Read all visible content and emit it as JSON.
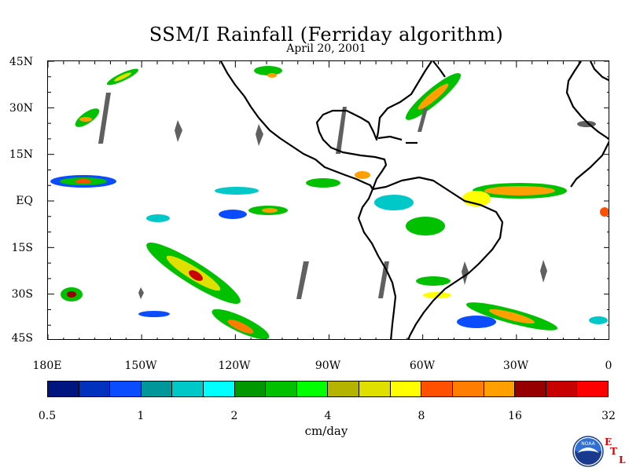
{
  "title": "SSM/I Rainfall (Ferriday algorithm)",
  "subtitle": "April 20, 2001",
  "lat_labels": [
    "45N",
    "30N",
    "15N",
    "EQ",
    "15S",
    "30S",
    "45S"
  ],
  "lon_labels": [
    "180E",
    "150W",
    "120W",
    "90W",
    "60W",
    "30W",
    "0"
  ],
  "colorbar": {
    "ticks": [
      "0.5",
      "1",
      "2",
      "4",
      "8",
      "16",
      "32"
    ],
    "units": "cm/day",
    "colors": [
      "#00157f",
      "#0032bd",
      "#0b4cff",
      "#00969a",
      "#00c8c8",
      "#00ffff",
      "#009800",
      "#00c000",
      "#00ff00",
      "#b4b400",
      "#e0e000",
      "#ffff00",
      "#ff5000",
      "#ff7d00",
      "#ffa000",
      "#960000",
      "#c80000",
      "#ff0000"
    ]
  },
  "logo": {
    "name": "NOAA",
    "etl": [
      "E",
      "T",
      "L"
    ]
  },
  "map": {
    "lon_range": [
      -180,
      0
    ],
    "lat_range": [
      -45,
      45
    ],
    "gap_color": "#606060",
    "coast_color": "#000000"
  }
}
